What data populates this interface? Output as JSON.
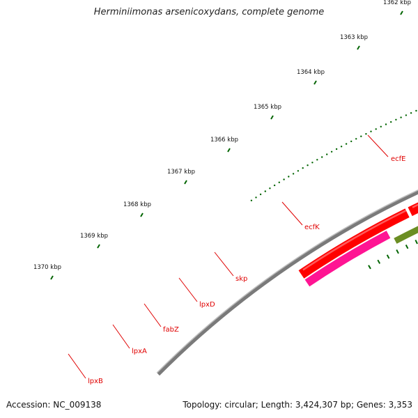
{
  "title": "Herminiimonas arsenicoxydans, complete genome",
  "accession": "Accession: NC_009138",
  "topology": "Topology: circular; Length: 3,424,307 bp; Genes: 3,353",
  "colors": {
    "backbone": "#7a7a7a",
    "cds_forward": "#ff0000",
    "cds_forward_highlight": "#ff8080",
    "rna_blue": "#7b68ee",
    "rna_pink": "#ff1493",
    "gene_green": "#6b8e23",
    "tick_green": "#006400",
    "label_red": "#e00000",
    "tick_text": "#111111"
  },
  "ticks": [
    {
      "label": "1362 kbp"
    },
    {
      "label": "1363 kbp"
    },
    {
      "label": "1364 kbp"
    },
    {
      "label": "1365 kbp"
    },
    {
      "label": "1366 kbp"
    },
    {
      "label": "1367 kbp"
    },
    {
      "label": "1368 kbp"
    },
    {
      "label": "1369 kbp"
    },
    {
      "label": "1370 kbp"
    }
  ],
  "genes": [
    {
      "name": "ecfE"
    },
    {
      "name": "ecfK"
    },
    {
      "name": "skp"
    },
    {
      "name": "lpxD"
    },
    {
      "name": "fabZ"
    },
    {
      "name": "lpxA"
    },
    {
      "name": "lpxB"
    }
  ]
}
